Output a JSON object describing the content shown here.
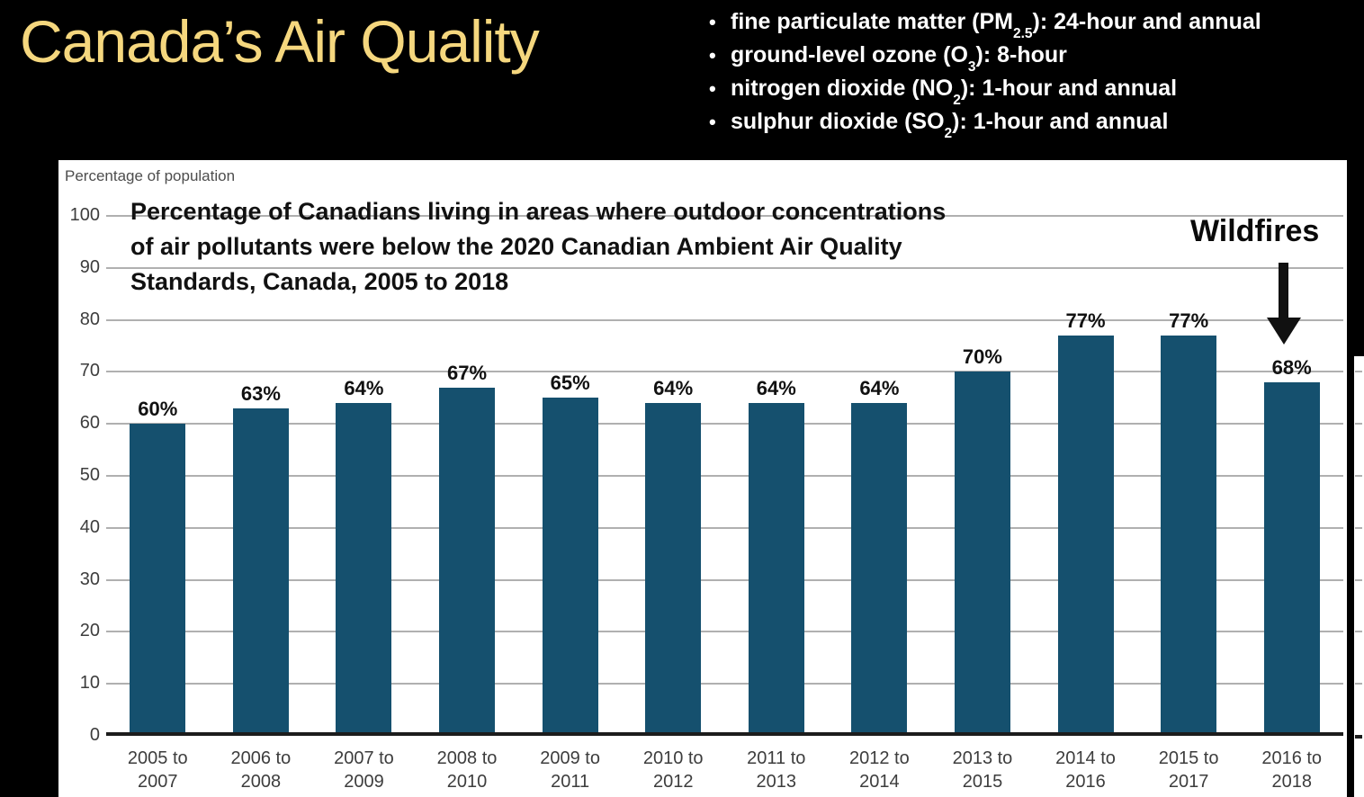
{
  "slide": {
    "title": "Canada’s Air Quality"
  },
  "standards_list": {
    "bullet": "•",
    "items": [
      {
        "pre": "fine particulate matter (PM",
        "sub": "2.5",
        "post": "): 24-hour and annual"
      },
      {
        "pre": "ground-level ozone (O",
        "sub": "3",
        "post": "): 8-hour"
      },
      {
        "pre": "nitrogen dioxide (NO",
        "sub": "2",
        "post": "): 1-hour and annual"
      },
      {
        "pre": "sulphur dioxide (SO",
        "sub": "2",
        "post": "): 1-hour and annual"
      }
    ]
  },
  "chart_data": {
    "type": "bar",
    "title_lines": [
      "Percentage of Canadians living in areas where outdoor concentrations",
      "of air pollutants were below the 2020 Canadian Ambient Air Quality",
      "Standards, Canada, 2005 to 2018"
    ],
    "ylabel": "Percentage of population",
    "categories": [
      "2005 to 2007",
      "2006 to 2008",
      "2007 to 2009",
      "2008 to 2010",
      "2009 to 2011",
      "2010 to 2012",
      "2011 to 2013",
      "2012 to 2014",
      "2013 to 2015",
      "2014 to 2016",
      "2015 to 2017",
      "2016 to 2018"
    ],
    "values": [
      60,
      63,
      64,
      67,
      65,
      64,
      64,
      64,
      70,
      77,
      77,
      68
    ],
    "data_label_suffix": "%",
    "ylim": [
      0,
      100
    ],
    "ytick_step": 10,
    "grid": true,
    "legend": "none",
    "annotation": {
      "text": "Wildfires",
      "target_category": "2016 to 2018"
    }
  },
  "colors": {
    "slide_background": "#000000",
    "slide_title": "#F5D77E",
    "bullet_text": "#FFFFFF",
    "panel_background": "#FFFFFF",
    "bar": "#15506E",
    "grid_line": "#B0B0B0",
    "axis_line": "#1C1C1C",
    "tick_text": "#3D3D3D",
    "data_label": "#111111"
  }
}
